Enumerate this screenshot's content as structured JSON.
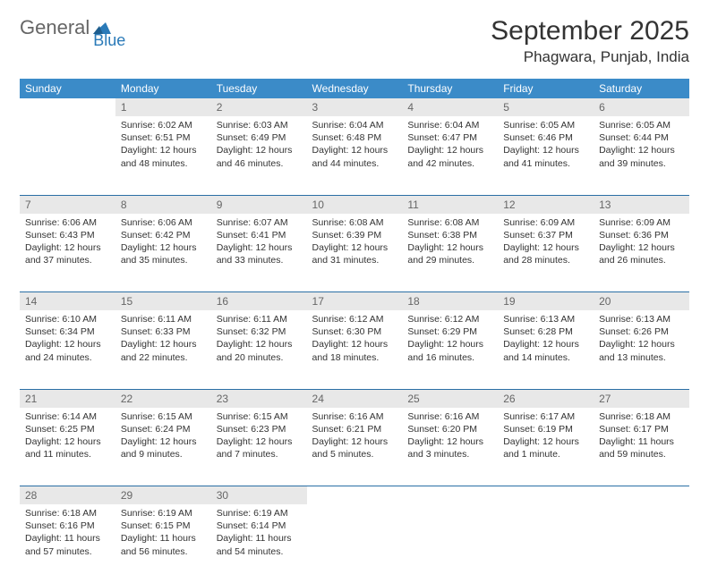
{
  "logo": {
    "text1": "General",
    "text2": "Blue",
    "accent": "#2a7ab8"
  },
  "title": "September 2025",
  "location": "Phagwara, Punjab, India",
  "colors": {
    "header_bg": "#3b8bc8",
    "header_fg": "#ffffff",
    "daynum_bg": "#e8e8e8",
    "daynum_fg": "#666666",
    "rule": "#2a6fa5",
    "text": "#333333"
  },
  "weekdays": [
    "Sunday",
    "Monday",
    "Tuesday",
    "Wednesday",
    "Thursday",
    "Friday",
    "Saturday"
  ],
  "start_offset": 1,
  "days": [
    {
      "n": 1,
      "sunrise": "6:02 AM",
      "sunset": "6:51 PM",
      "daylight": "12 hours and 48 minutes."
    },
    {
      "n": 2,
      "sunrise": "6:03 AM",
      "sunset": "6:49 PM",
      "daylight": "12 hours and 46 minutes."
    },
    {
      "n": 3,
      "sunrise": "6:04 AM",
      "sunset": "6:48 PM",
      "daylight": "12 hours and 44 minutes."
    },
    {
      "n": 4,
      "sunrise": "6:04 AM",
      "sunset": "6:47 PM",
      "daylight": "12 hours and 42 minutes."
    },
    {
      "n": 5,
      "sunrise": "6:05 AM",
      "sunset": "6:46 PM",
      "daylight": "12 hours and 41 minutes."
    },
    {
      "n": 6,
      "sunrise": "6:05 AM",
      "sunset": "6:44 PM",
      "daylight": "12 hours and 39 minutes."
    },
    {
      "n": 7,
      "sunrise": "6:06 AM",
      "sunset": "6:43 PM",
      "daylight": "12 hours and 37 minutes."
    },
    {
      "n": 8,
      "sunrise": "6:06 AM",
      "sunset": "6:42 PM",
      "daylight": "12 hours and 35 minutes."
    },
    {
      "n": 9,
      "sunrise": "6:07 AM",
      "sunset": "6:41 PM",
      "daylight": "12 hours and 33 minutes."
    },
    {
      "n": 10,
      "sunrise": "6:08 AM",
      "sunset": "6:39 PM",
      "daylight": "12 hours and 31 minutes."
    },
    {
      "n": 11,
      "sunrise": "6:08 AM",
      "sunset": "6:38 PM",
      "daylight": "12 hours and 29 minutes."
    },
    {
      "n": 12,
      "sunrise": "6:09 AM",
      "sunset": "6:37 PM",
      "daylight": "12 hours and 28 minutes."
    },
    {
      "n": 13,
      "sunrise": "6:09 AM",
      "sunset": "6:36 PM",
      "daylight": "12 hours and 26 minutes."
    },
    {
      "n": 14,
      "sunrise": "6:10 AM",
      "sunset": "6:34 PM",
      "daylight": "12 hours and 24 minutes."
    },
    {
      "n": 15,
      "sunrise": "6:11 AM",
      "sunset": "6:33 PM",
      "daylight": "12 hours and 22 minutes."
    },
    {
      "n": 16,
      "sunrise": "6:11 AM",
      "sunset": "6:32 PM",
      "daylight": "12 hours and 20 minutes."
    },
    {
      "n": 17,
      "sunrise": "6:12 AM",
      "sunset": "6:30 PM",
      "daylight": "12 hours and 18 minutes."
    },
    {
      "n": 18,
      "sunrise": "6:12 AM",
      "sunset": "6:29 PM",
      "daylight": "12 hours and 16 minutes."
    },
    {
      "n": 19,
      "sunrise": "6:13 AM",
      "sunset": "6:28 PM",
      "daylight": "12 hours and 14 minutes."
    },
    {
      "n": 20,
      "sunrise": "6:13 AM",
      "sunset": "6:26 PM",
      "daylight": "12 hours and 13 minutes."
    },
    {
      "n": 21,
      "sunrise": "6:14 AM",
      "sunset": "6:25 PM",
      "daylight": "12 hours and 11 minutes."
    },
    {
      "n": 22,
      "sunrise": "6:15 AM",
      "sunset": "6:24 PM",
      "daylight": "12 hours and 9 minutes."
    },
    {
      "n": 23,
      "sunrise": "6:15 AM",
      "sunset": "6:23 PM",
      "daylight": "12 hours and 7 minutes."
    },
    {
      "n": 24,
      "sunrise": "6:16 AM",
      "sunset": "6:21 PM",
      "daylight": "12 hours and 5 minutes."
    },
    {
      "n": 25,
      "sunrise": "6:16 AM",
      "sunset": "6:20 PM",
      "daylight": "12 hours and 3 minutes."
    },
    {
      "n": 26,
      "sunrise": "6:17 AM",
      "sunset": "6:19 PM",
      "daylight": "12 hours and 1 minute."
    },
    {
      "n": 27,
      "sunrise": "6:18 AM",
      "sunset": "6:17 PM",
      "daylight": "11 hours and 59 minutes."
    },
    {
      "n": 28,
      "sunrise": "6:18 AM",
      "sunset": "6:16 PM",
      "daylight": "11 hours and 57 minutes."
    },
    {
      "n": 29,
      "sunrise": "6:19 AM",
      "sunset": "6:15 PM",
      "daylight": "11 hours and 56 minutes."
    },
    {
      "n": 30,
      "sunrise": "6:19 AM",
      "sunset": "6:14 PM",
      "daylight": "11 hours and 54 minutes."
    }
  ],
  "labels": {
    "sunrise": "Sunrise:",
    "sunset": "Sunset:",
    "daylight": "Daylight:"
  }
}
